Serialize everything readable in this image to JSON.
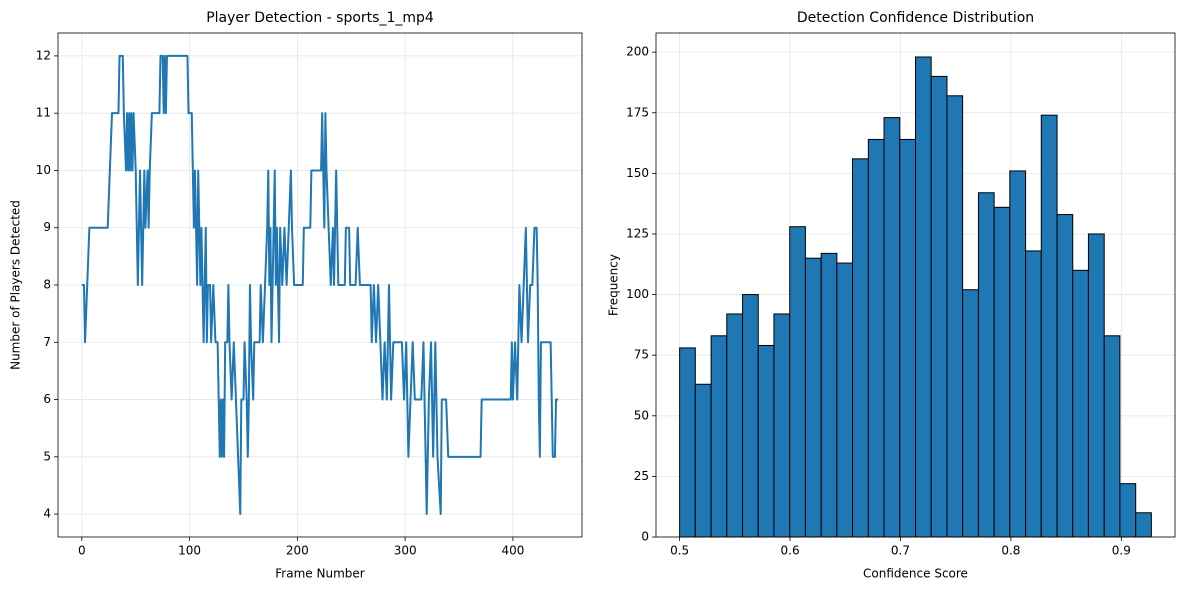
{
  "chart_data": [
    {
      "type": "line",
      "title": "Player Detection - sports_1_mp4",
      "xlabel": "Frame Number",
      "ylabel": "Number of Players Detected",
      "x": [
        0,
        2,
        3,
        5,
        7,
        24,
        26,
        28,
        34,
        35,
        38,
        39,
        41,
        42,
        43,
        44,
        45,
        46,
        47,
        48,
        50,
        51,
        52,
        53,
        54,
        55,
        56,
        57,
        58,
        59,
        61,
        62,
        63,
        65,
        72,
        73,
        75,
        76,
        77,
        78,
        79,
        98,
        99,
        102,
        103,
        104,
        105,
        106,
        107,
        108,
        109,
        110,
        111,
        112,
        113,
        114,
        115,
        116,
        117,
        119,
        120,
        122,
        124,
        126,
        127,
        128,
        129,
        130,
        131,
        132,
        133,
        135,
        136,
        137,
        139,
        141,
        143,
        145,
        147,
        148,
        150,
        151,
        153,
        154,
        155,
        156,
        157,
        159,
        160,
        165,
        166,
        168,
        170,
        172,
        173,
        174,
        175,
        176,
        177,
        178,
        179,
        180,
        181,
        183,
        184,
        186,
        188,
        190,
        192,
        194,
        195,
        197,
        205,
        206,
        212,
        213,
        222,
        223,
        224,
        225,
        226,
        227,
        229,
        231,
        233,
        234,
        236,
        237,
        238,
        244,
        245,
        248,
        249,
        254,
        256,
        258,
        268,
        269,
        271,
        273,
        275,
        277,
        279,
        281,
        283,
        285,
        287,
        289,
        297,
        299,
        301,
        303,
        305,
        307,
        309,
        315,
        317,
        319,
        320,
        322,
        324,
        326,
        328,
        330,
        333,
        334,
        338,
        340,
        370,
        371,
        398,
        399,
        400,
        402,
        404,
        406,
        408,
        410,
        412,
        414,
        416,
        418,
        420,
        422,
        423,
        424,
        425,
        426,
        435,
        436,
        437,
        439,
        440,
        442
      ],
      "series": [
        {
          "name": "Players",
          "color": "#1f77b4",
          "values": [
            8,
            8,
            7,
            8,
            9,
            9,
            10,
            11,
            11,
            12,
            12,
            11,
            10,
            11,
            10,
            11,
            10,
            11,
            10,
            11,
            10,
            9,
            8,
            9,
            10,
            9,
            8,
            9,
            10,
            9,
            10,
            9,
            10,
            11,
            11,
            12,
            12,
            11,
            12,
            11,
            12,
            12,
            11,
            11,
            10,
            9,
            10,
            9,
            8,
            10,
            9,
            8,
            9,
            8,
            7,
            8,
            9,
            7,
            8,
            8,
            7,
            8,
            7,
            7,
            6,
            5,
            6,
            5,
            6,
            5,
            7,
            7,
            8,
            7,
            6,
            7,
            6,
            5,
            4,
            6,
            6,
            7,
            6,
            5,
            6,
            8,
            7,
            6,
            7,
            7,
            8,
            7,
            8,
            9,
            10,
            8,
            9,
            7,
            8,
            9,
            10,
            8,
            9,
            7,
            9,
            8,
            9,
            8,
            9,
            10,
            9,
            8,
            8,
            9,
            9,
            10,
            10,
            11,
            10,
            9,
            11,
            10,
            9,
            8,
            9,
            8,
            10,
            9,
            8,
            8,
            9,
            9,
            8,
            8,
            9,
            8,
            8,
            7,
            8,
            7,
            8,
            7,
            6,
            7,
            6,
            8,
            6,
            7,
            7,
            6,
            7,
            5,
            6,
            7,
            6,
            6,
            7,
            5,
            4,
            6,
            7,
            5,
            7,
            5,
            4,
            6,
            6,
            5,
            5,
            6,
            6,
            7,
            6,
            7,
            6,
            8,
            7,
            8,
            9,
            7,
            8,
            8,
            9,
            9,
            8,
            6,
            5,
            7,
            7,
            6,
            5,
            5,
            6,
            6
          ]
        }
      ],
      "xlim": [
        -22.1,
        464.1
      ],
      "xticks": [
        0,
        100,
        200,
        300,
        400
      ],
      "ylim": [
        3.6,
        12.4
      ],
      "yticks": [
        4,
        5,
        6,
        7,
        8,
        9,
        10,
        11,
        12
      ],
      "grid": true
    },
    {
      "type": "histogram",
      "title": "Detection Confidence Distribution",
      "xlabel": "Confidence Score",
      "ylabel": "Frequency",
      "bins": [
        0.5,
        0.5142,
        0.5285,
        0.5427,
        0.557,
        0.5712,
        0.5854,
        0.5997,
        0.6139,
        0.6282,
        0.6424,
        0.6566,
        0.6709,
        0.6851,
        0.6994,
        0.7136,
        0.7278,
        0.7421,
        0.7563,
        0.7706,
        0.7848,
        0.799,
        0.8133,
        0.8275,
        0.8418,
        0.856,
        0.8702,
        0.8845,
        0.8987,
        0.913,
        0.9272
      ],
      "values": [
        78,
        63,
        83,
        92,
        100,
        79,
        92,
        128,
        115,
        117,
        113,
        156,
        164,
        173,
        164,
        198,
        190,
        182,
        102,
        142,
        136,
        151,
        118,
        174,
        133,
        110,
        125,
        83,
        22,
        10
      ],
      "color": "#1f77b4",
      "edgecolor": "#000000",
      "xlim": [
        0.4786,
        0.9486
      ],
      "xticks": [
        0.5,
        0.6,
        0.7,
        0.8,
        0.9
      ],
      "ylim": [
        0,
        207.9
      ],
      "yticks": [
        0,
        25,
        50,
        75,
        100,
        125,
        150,
        175,
        200
      ],
      "grid": true
    }
  ]
}
